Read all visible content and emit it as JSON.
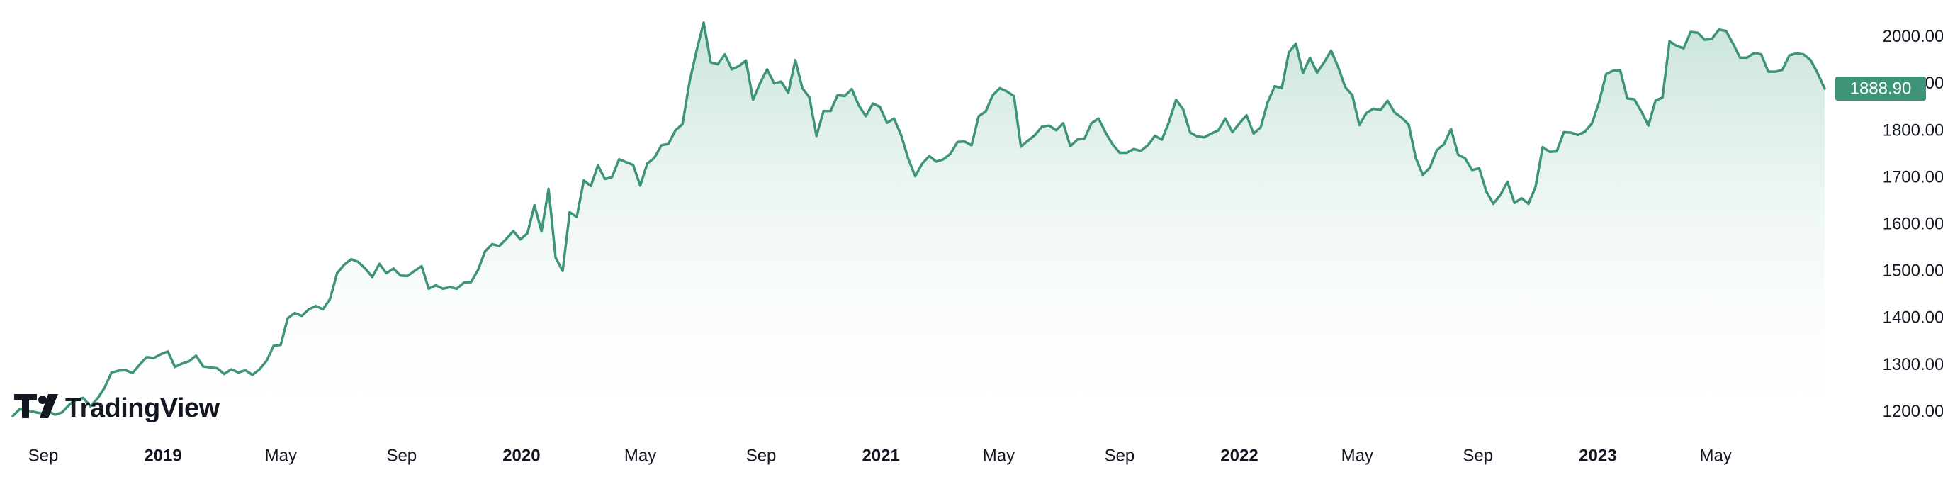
{
  "chart_data": {
    "type": "area",
    "x_tick_labels": [
      "Sep",
      "2019",
      "May",
      "Sep",
      "2020",
      "May",
      "Sep",
      "2021",
      "May",
      "Sep",
      "2022",
      "May",
      "Sep",
      "2023",
      "May"
    ],
    "x_tick_bold": [
      false,
      true,
      false,
      false,
      true,
      false,
      false,
      true,
      false,
      false,
      true,
      false,
      false,
      true,
      false
    ],
    "x_tick_dates": [
      "2018-09",
      "2019-01",
      "2019-05",
      "2019-09",
      "2020-01",
      "2020-05",
      "2020-09",
      "2021-01",
      "2021-05",
      "2021-09",
      "2022-01",
      "2022-05",
      "2022-09",
      "2023-01",
      "2023-05"
    ],
    "y_ticks": [
      "2000.00",
      "1900.00",
      "1800.00",
      "1700.00",
      "1600.00",
      "1500.00",
      "1400.00",
      "1300.00",
      "1200.00"
    ],
    "ylim": [
      1178,
      2078
    ],
    "last_price": "1888.90",
    "colors": {
      "line": "#3d9479",
      "fill_top": "#9ccdbd",
      "fill_bottom": "#ffffff",
      "price_box": "#3d9479",
      "axis_text": "#131722"
    },
    "series": [
      {
        "values": [
          1190,
          1205,
          1202,
          1199,
          1196,
          1201,
          1193,
          1198,
          1214,
          1225,
          1229,
          1211,
          1227,
          1250,
          1283,
          1287,
          1288,
          1282,
          1300,
          1316,
          1314,
          1322,
          1328,
          1295,
          1302,
          1307,
          1319,
          1296,
          1294,
          1292,
          1280,
          1290,
          1283,
          1288,
          1278,
          1290,
          1308,
          1340,
          1342,
          1399,
          1410,
          1404,
          1418,
          1425,
          1418,
          1440,
          1495,
          1513,
          1525,
          1519,
          1505,
          1487,
          1515,
          1495,
          1505,
          1490,
          1489,
          1500,
          1510,
          1462,
          1469,
          1462,
          1465,
          1462,
          1475,
          1476,
          1502,
          1542,
          1557,
          1553,
          1568,
          1585,
          1567,
          1580,
          1640,
          1584,
          1675,
          1528,
          1500,
          1625,
          1615,
          1693,
          1681,
          1725,
          1696,
          1700,
          1738,
          1732,
          1726,
          1682,
          1729,
          1741,
          1768,
          1771,
          1800,
          1813,
          1904,
          1970,
          2030,
          1945,
          1941,
          1962,
          1930,
          1937,
          1949,
          1865,
          1901,
          1930,
          1900,
          1904,
          1880,
          1950,
          1890,
          1870,
          1788,
          1841,
          1841,
          1875,
          1873,
          1888,
          1853,
          1830,
          1857,
          1850,
          1816,
          1825,
          1790,
          1740,
          1702,
          1729,
          1745,
          1733,
          1738,
          1750,
          1775,
          1776,
          1768,
          1830,
          1840,
          1875,
          1890,
          1883,
          1873,
          1765,
          1778,
          1790,
          1808,
          1810,
          1800,
          1815,
          1766,
          1780,
          1782,
          1815,
          1825,
          1795,
          1770,
          1752,
          1752,
          1760,
          1756,
          1768,
          1788,
          1780,
          1818,
          1865,
          1845,
          1795,
          1787,
          1785,
          1793,
          1800,
          1825,
          1796,
          1815,
          1832,
          1793,
          1806,
          1860,
          1894,
          1890,
          1966,
          1985,
          1922,
          1955,
          1923,
          1945,
          1970,
          1935,
          1892,
          1875,
          1811,
          1837,
          1846,
          1843,
          1863,
          1838,
          1827,
          1812,
          1741,
          1705,
          1720,
          1758,
          1770,
          1803,
          1748,
          1740,
          1715,
          1719,
          1670,
          1643,
          1662,
          1690,
          1645,
          1655,
          1643,
          1680,
          1764,
          1754,
          1755,
          1796,
          1795,
          1790,
          1797,
          1815,
          1860,
          1920,
          1927,
          1928,
          1868,
          1866,
          1840,
          1810,
          1863,
          1870,
          1990,
          1980,
          1975,
          2010,
          2008,
          1993,
          1995,
          2015,
          2012,
          1985,
          1955,
          1955,
          1965,
          1962,
          1925,
          1925,
          1929,
          1960,
          1964,
          1962,
          1950,
          1922,
          1888.9
        ]
      }
    ]
  },
  "watermark": {
    "text": "TradingView"
  }
}
